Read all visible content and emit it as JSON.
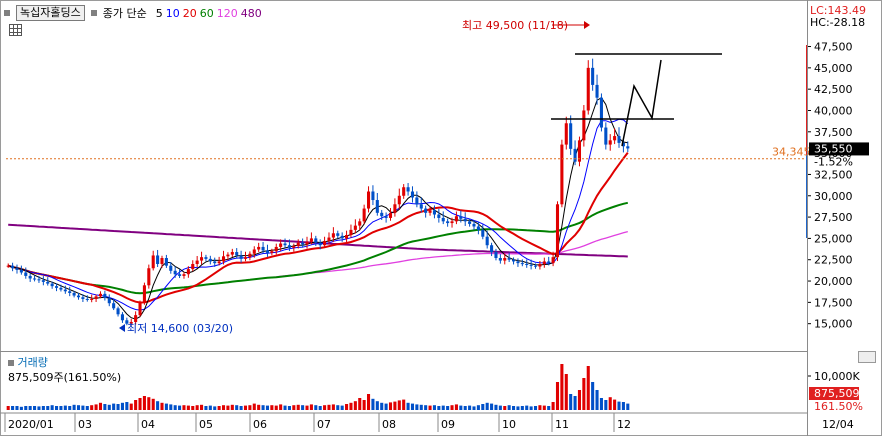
{
  "legend": {
    "stock_name": "녹십자홀딩스",
    "chart_kind": "종가 단순",
    "ma": [
      {
        "label": "5",
        "color": "#000000"
      },
      {
        "label": "10",
        "color": "#0000ff"
      },
      {
        "label": "20",
        "color": "#e00000"
      },
      {
        "label": "60",
        "color": "#008000"
      },
      {
        "label": "120",
        "color": "#e040e0"
      },
      {
        "label": "480",
        "color": "#800080"
      }
    ]
  },
  "right_header": {
    "lc": "LC:143.49",
    "hc": "HC:-28.18"
  },
  "annotations": {
    "high": "최고 49,500 (11/18)",
    "low": "최저 14,600 (03/20)",
    "ref_price": "34,345",
    "current_price": "35,550",
    "change": "-1.52%"
  },
  "volume_panel": {
    "title": "거래량",
    "value": "875,509주(161.50%)",
    "axis_label": "10,000K",
    "current": "875,509",
    "pct": "161.50%"
  },
  "colors": {
    "up": "#e00000",
    "down": "#0050c8",
    "ref_line": "#e07020",
    "axis_red": "#e02020",
    "axis_blue": "#1e64c8"
  },
  "chart_data": {
    "type": "candlestick",
    "y_axis": {
      "min": 12500,
      "max": 48500,
      "ticks": [
        "15,000",
        "17,500",
        "20,000",
        "22,500",
        "25,000",
        "27,500",
        "30,000",
        "32,500",
        "35,000",
        "37,500",
        "40,000",
        "42,500",
        "45,000",
        "47,500"
      ]
    },
    "x_axis": {
      "labels": [
        "2020/01",
        "03",
        "04",
        "05",
        "06",
        "07",
        "08",
        "09",
        "10",
        "11",
        "12",
        "12/04"
      ]
    },
    "high": {
      "value": 49500,
      "date": "11/18"
    },
    "low": {
      "value": 14600,
      "date": "03/20"
    },
    "close_series": [
      21800,
      21500,
      21300,
      21000,
      20600,
      20300,
      20200,
      20100,
      19900,
      19700,
      19400,
      19200,
      19000,
      18800,
      18600,
      18300,
      18100,
      17900,
      17800,
      17900,
      18200,
      18500,
      18000,
      17400,
      16800,
      16100,
      15400,
      15000,
      15200,
      16000,
      17500,
      19500,
      21500,
      23000,
      22000,
      22700,
      21800,
      21200,
      20800,
      20600,
      20800,
      21400,
      22000,
      22400,
      22800,
      22600,
      22300,
      22100,
      22300,
      22900,
      23100,
      23400,
      23000,
      22600,
      22800,
      23200,
      23700,
      24000,
      23600,
      23300,
      23500,
      24000,
      24400,
      24200,
      23900,
      24100,
      24500,
      24300,
      24600,
      25000,
      24500,
      24200,
      24700,
      25100,
      25600,
      25300,
      25000,
      25400,
      26000,
      26500,
      27000,
      28500,
      30500,
      29500,
      28000,
      27600,
      27400,
      28000,
      29000,
      30000,
      31000,
      30500,
      29800,
      29000,
      28500,
      28000,
      28300,
      27800,
      27400,
      27000,
      26800,
      27000,
      27600,
      27300,
      27000,
      26700,
      26400,
      26000,
      25200,
      24200,
      23400,
      22700,
      22400,
      22700,
      22500,
      22300,
      22100,
      22000,
      21900,
      21800,
      21700,
      22000,
      22300,
      22100,
      22800,
      29000,
      36000,
      38500,
      35500,
      34000,
      36500,
      40000,
      45000,
      43000,
      41500,
      38000,
      36000,
      36500,
      37000,
      36200,
      35800,
      35550
    ],
    "volume_series": [
      1,
      1,
      1,
      0.8,
      1,
      1,
      1,
      0.9,
      1,
      1,
      1.2,
      1,
      1,
      1.1,
      1,
      1.3,
      1.2,
      1.1,
      1,
      1.2,
      1.4,
      1.8,
      1.5,
      1.3,
      1.6,
      1.5,
      1.8,
      2,
      1.6,
      2.5,
      3,
      3.5,
      3.2,
      2.8,
      2.2,
      1.8,
      1.6,
      1.4,
      1.2,
      1.1,
      1.2,
      1.1,
      1,
      1.2,
      1.3,
      1,
      1.1,
      0.9,
      1,
      1.2,
      1.1,
      1.3,
      1.2,
      1,
      1.1,
      1.2,
      1.6,
      1.3,
      1.2,
      1.1,
      1.2,
      1.1,
      1.4,
      1.1,
      1,
      1.2,
      1.3,
      1.2,
      1.1,
      1.4,
      1.2,
      1,
      1.2,
      1.3,
      1.4,
      1.2,
      1.1,
      1.5,
      1.8,
      2.2,
      3,
      2.5,
      4,
      2.8,
      2.2,
      1.8,
      1.6,
      1.9,
      2.1,
      2.4,
      2.6,
      1.8,
      1.6,
      1.4,
      1.3,
      1.2,
      1.1,
      1.2,
      1,
      1.1,
      1,
      1.2,
      1.4,
      1.1,
      1,
      1.1,
      0.9,
      1.2,
      1.5,
      1.8,
      1.6,
      1.3,
      1.1,
      1,
      1.2,
      1,
      0.9,
      1,
      1.1,
      0.9,
      1,
      1.2,
      1.1,
      1,
      2,
      7,
      11.5,
      9,
      4,
      3.5,
      5,
      8,
      11,
      7,
      5,
      3,
      2.5,
      3.2,
      2.6,
      2.1,
      2,
      1.6
    ]
  }
}
